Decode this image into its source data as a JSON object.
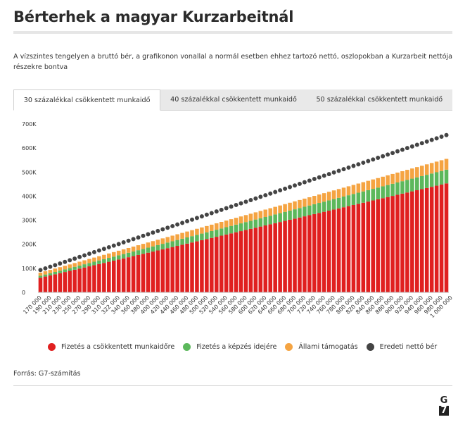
{
  "header": {
    "title": "Bérterhek a magyar Kurzarbeitnál",
    "subtitle": "A vízszintes tengelyen a bruttó bér, a grafikonon vonallal a normál esetben ehhez tartozó nettó, oszlopokban a Kurzarbeit nettója részekre bontva"
  },
  "tabs": [
    {
      "label": "30 százalékkal csökkentett munkaidő",
      "active": true
    },
    {
      "label": "40 százalékkal csökkentett munkaidő",
      "active": false
    },
    {
      "label": "50 százalékkal csökkentett munkaidő",
      "active": false
    }
  ],
  "legend": [
    {
      "label": "Fizetés a csökkentett munkaidőre",
      "color": "#e02020"
    },
    {
      "label": "Fizetés a képzés idejére",
      "color": "#5cb85c"
    },
    {
      "label": "Állami támogatás",
      "color": "#f5a442"
    },
    {
      "label": "Eredeti nettó bér",
      "color": "#444444"
    }
  ],
  "footer": {
    "source": "Forrás: G7-számítás",
    "logo_top": "G",
    "logo_bottom": "7"
  },
  "chart_data": {
    "type": "bar",
    "stacked": true,
    "x_start": 170000,
    "x_end": 1000000,
    "x_step": 10000,
    "x_tick_labels": [
      "170 000",
      "190 000",
      "210 000",
      "230 000",
      "250 000",
      "270 000",
      "290 000",
      "310 000",
      "322 000",
      "340 000",
      "360 000",
      "380 000",
      "400 000",
      "420 000",
      "440 000",
      "460 000",
      "480 000",
      "500 000",
      "520 000",
      "540 000",
      "560 000",
      "580 000",
      "600 000",
      "620 000",
      "640 000",
      "660 000",
      "680 000",
      "700 000",
      "720 000",
      "740 000",
      "760 000",
      "780 000",
      "800 000",
      "820 000",
      "840 000",
      "860 000",
      "880 000",
      "900 000",
      "920 000",
      "940 000",
      "960 000",
      "980 000",
      "1 000 000"
    ],
    "y_ticks": [
      0,
      100000,
      200000,
      300000,
      400000,
      500000,
      600000,
      700000
    ],
    "y_tick_labels": [
      "0",
      "100K",
      "200K",
      "300K",
      "400K",
      "500K",
      "600K",
      "700K"
    ],
    "ylim": [
      0,
      700000
    ],
    "series": [
      {
        "name": "Fizetés a csökkentett munkaidőre",
        "color": "#e02020",
        "value_start": 61000,
        "value_end": 453000
      },
      {
        "name": "Fizetés a képzés idejére",
        "color": "#5cb85c",
        "value_start": 8000,
        "value_end": 57000
      },
      {
        "name": "Állami támogatás",
        "color": "#f5a442",
        "value_start": 13000,
        "value_end": 45000
      },
      {
        "name": "Eredeti nettó bér",
        "type": "line-dots",
        "color": "#444444",
        "value_start": 93000,
        "value_end": 654000
      }
    ]
  }
}
